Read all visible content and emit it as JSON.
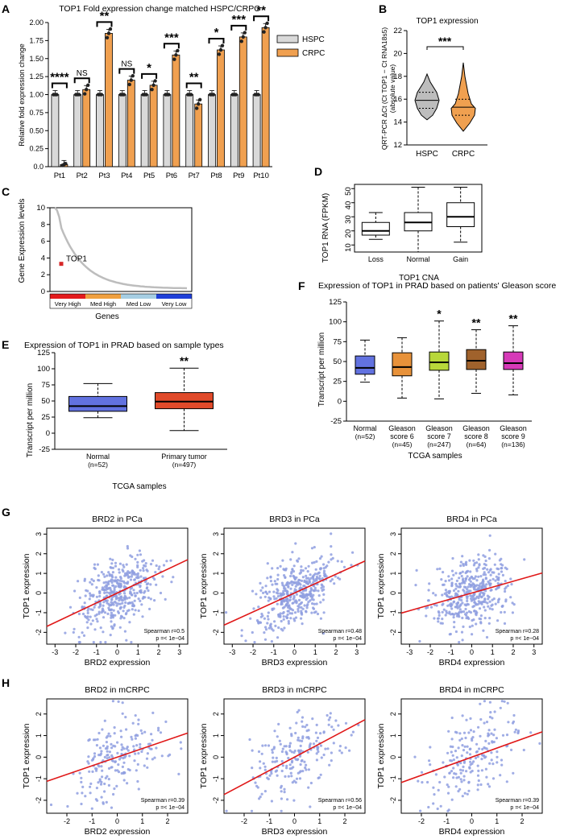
{
  "figure": {
    "panel_letters": [
      "A",
      "B",
      "C",
      "D",
      "E",
      "F",
      "G",
      "H"
    ]
  },
  "chart_data": [
    {
      "panel": "A",
      "type": "bar",
      "title": "TOP1 Fold expression change matched HSPC/CRPC",
      "ylabel": "Relative fold expression change",
      "ylim": [
        0,
        2.0
      ],
      "yticks": [
        "0.0",
        "0.25",
        "0.50",
        "0.75",
        "1.00",
        "1.25",
        "1.50",
        "1.75",
        "2.00"
      ],
      "categories": [
        "Pt1",
        "Pt2",
        "Pt3",
        "Pt4",
        "Pt5",
        "Pt6",
        "Pt7",
        "Pt8",
        "Pt9",
        "Pt10"
      ],
      "series": [
        {
          "name": "HSPC",
          "color": "#d9d9d9",
          "values": [
            1,
            1,
            1,
            1,
            1,
            1,
            1,
            1,
            1,
            1
          ]
        },
        {
          "name": "CRPC",
          "color": "#f0a050",
          "values": [
            0.03,
            1.07,
            1.85,
            1.2,
            1.13,
            1.55,
            0.87,
            1.62,
            1.8,
            1.93
          ]
        }
      ],
      "significance": [
        "****",
        "NS",
        "**",
        "NS",
        "*",
        "***",
        "**",
        "*",
        "***",
        "**"
      ]
    },
    {
      "panel": "B",
      "type": "violin",
      "title": "TOP1 expression",
      "ylabel": "QRT-PCR ΔCt (Ct TOP1 − Ct RNA18s5)",
      "ylabel2": "(absolute value)",
      "ylim": [
        12,
        22
      ],
      "yticks": [
        "12",
        "14",
        "16",
        "18",
        "20",
        "22"
      ],
      "categories": [
        "HSPC",
        "CRPC"
      ],
      "colors": [
        "#bdbdbd",
        "#f0a050"
      ],
      "medians": [
        15.9,
        15.3
      ],
      "significance": "***"
    },
    {
      "panel": "C",
      "type": "line",
      "ylabel": "Gene Expression levels",
      "xlabel": "Genes",
      "ylim": [
        0,
        10
      ],
      "yticks": [
        "0",
        "2",
        "4",
        "6",
        "8",
        "10"
      ],
      "highlight": {
        "label": "TOP1",
        "value": 3.3
      },
      "bands": [
        {
          "label": "Very High",
          "color": "#e31a1c"
        },
        {
          "label": "Med High",
          "color": "#f0a040"
        },
        {
          "label": "Med Low",
          "color": "#a6cee3"
        },
        {
          "label": "Very Low",
          "color": "#1f3fd8"
        }
      ]
    },
    {
      "panel": "D",
      "type": "box",
      "ylabel": "TOP1 RNA (FPKM)",
      "xlabel": "TOP1 CNA",
      "ylim": [
        5,
        53
      ],
      "yticks": [
        "10",
        "20",
        "30",
        "40",
        "50"
      ],
      "categories": [
        "Loss",
        "Normal",
        "Gain"
      ],
      "boxes": [
        {
          "min": 14,
          "q1": 17,
          "median": 20,
          "q3": 26,
          "max": 33
        },
        {
          "min": 5,
          "q1": 20,
          "median": 26,
          "q3": 33,
          "max": 51
        },
        {
          "min": 12,
          "q1": 23,
          "median": 30,
          "q3": 40,
          "max": 51
        }
      ]
    },
    {
      "panel": "E",
      "type": "box",
      "title": "Expression of TOP1 in PRAD based on sample types",
      "ylabel": "Transcript per million",
      "xlabel": "TCGA samples",
      "ylim": [
        -25,
        125
      ],
      "yticks": [
        "-25",
        "0",
        "25",
        "50",
        "75",
        "100",
        "125"
      ],
      "categories": [
        "Normal",
        "Primary tumor"
      ],
      "sublabels": [
        "(n=52)",
        "(n=497)"
      ],
      "colors": [
        "#6272e0",
        "#e04a2a"
      ],
      "boxes": [
        {
          "min": 24,
          "q1": 34,
          "median": 42,
          "q3": 57,
          "max": 77
        },
        {
          "min": 4,
          "q1": 38,
          "median": 49,
          "q3": 63,
          "max": 101
        }
      ],
      "significance": [
        "",
        "**"
      ]
    },
    {
      "panel": "F",
      "type": "box",
      "title": "Expression of TOP1 in PRAD based on patients' Gleason score",
      "ylabel": "Transcript per million",
      "xlabel": "TCGA samples",
      "ylim": [
        -25,
        125
      ],
      "yticks": [
        "-25",
        "0",
        "25",
        "50",
        "75",
        "100",
        "125"
      ],
      "categories": [
        "Normal",
        "Gleason\nscore 6",
        "Gleason\nscore 7",
        "Gleason\nscore 8",
        "Gleason\nscore 9"
      ],
      "sublabels": [
        "(n=52)",
        "(n=45)",
        "(n=247)",
        "(n=64)",
        "(n=136)"
      ],
      "colors": [
        "#6272e0",
        "#e8923a",
        "#b8d83a",
        "#a0622c",
        "#d63ab8"
      ],
      "boxes": [
        {
          "min": 24,
          "q1": 34,
          "median": 42,
          "q3": 57,
          "max": 77
        },
        {
          "min": 4,
          "q1": 32,
          "median": 43,
          "q3": 61,
          "max": 80
        },
        {
          "min": 3,
          "q1": 39,
          "median": 49,
          "q3": 62,
          "max": 101
        },
        {
          "min": 10,
          "q1": 40,
          "median": 51,
          "q3": 65,
          "max": 90
        },
        {
          "min": 8,
          "q1": 40,
          "median": 48,
          "q3": 62,
          "max": 95
        }
      ],
      "significance": [
        "",
        "",
        "*",
        "**",
        "**"
      ]
    },
    {
      "panel": "G",
      "type": "scatter",
      "plots": [
        {
          "title": "BRD2 in PCa",
          "xlabel": "BRD2 expression",
          "ylabel": "TOP1 expression",
          "stat1": "Spearman r=0.5",
          "stat2": "p =< 1e−04",
          "xticks": [
            "-3",
            "-2",
            "-1",
            "0",
            "1",
            "2",
            "3"
          ],
          "yticks": [
            "-2",
            "-1",
            "0",
            "1",
            "2",
            "3"
          ],
          "xlim": [
            -3.4,
            3.4
          ],
          "ylim": [
            -2.6,
            3.3
          ],
          "fit": {
            "slope": 0.5,
            "intercept": 0.0
          },
          "n": 430
        },
        {
          "title": "BRD3 in PCa",
          "xlabel": "BRD3 expression",
          "ylabel": "TOP1 expression",
          "stat1": "Spearman r=0.48",
          "stat2": "p =< 1e−04",
          "xticks": [
            "-3",
            "-2",
            "-1",
            "0",
            "1",
            "2",
            "3"
          ],
          "yticks": [
            "-2",
            "-1",
            "0",
            "1",
            "2",
            "3"
          ],
          "xlim": [
            -3.4,
            3.4
          ],
          "ylim": [
            -2.6,
            3.3
          ],
          "fit": {
            "slope": 0.48,
            "intercept": 0.0
          },
          "n": 430
        },
        {
          "title": "BRD4 in PCa",
          "xlabel": "BRD4 expression",
          "ylabel": "TOP1 expression",
          "stat1": "Spearman r=0.28",
          "stat2": "p =< 1e−04",
          "xticks": [
            "-3",
            "-2",
            "-1",
            "0",
            "1",
            "2",
            "3"
          ],
          "yticks": [
            "-2",
            "-1",
            "0",
            "1",
            "2",
            "3"
          ],
          "xlim": [
            -3.4,
            3.4
          ],
          "ylim": [
            -2.6,
            3.3
          ],
          "fit": {
            "slope": 0.3,
            "intercept": 0.0
          },
          "n": 430
        }
      ]
    },
    {
      "panel": "H",
      "type": "scatter",
      "plots": [
        {
          "title": "BRD2 in mCRPC",
          "xlabel": "BRD2 expression",
          "ylabel": "TOP1 expression",
          "stat1": "Spearman r=0.39",
          "stat2": "p =< 1e−04",
          "xticks": [
            "-2",
            "-1",
            "0",
            "1",
            "2"
          ],
          "yticks": [
            "-2",
            "-1",
            "0",
            "1",
            "2"
          ],
          "xlim": [
            -2.8,
            2.8
          ],
          "ylim": [
            -2.6,
            2.7
          ],
          "fit": {
            "slope": 0.4,
            "intercept": 0.0
          },
          "n": 200
        },
        {
          "title": "BRD3 in mCRPC",
          "xlabel": "BRD3 expression",
          "ylabel": "TOP1 expression",
          "stat1": "Spearman r=0.56",
          "stat2": "p =< 1e−04",
          "xticks": [
            "-2",
            "-1",
            "0",
            "1",
            "2"
          ],
          "yticks": [
            "-2",
            "-1",
            "0",
            "1",
            "2"
          ],
          "xlim": [
            -2.8,
            2.8
          ],
          "ylim": [
            -2.6,
            2.7
          ],
          "fit": {
            "slope": 0.62,
            "intercept": 0.0
          },
          "n": 200
        },
        {
          "title": "BRD4 in mCRPC",
          "xlabel": "BRD4 expression",
          "ylabel": "TOP1 expression",
          "stat1": "Spearman r=0.39",
          "stat2": "p =< 1e−04",
          "xticks": [
            "-2",
            "-1",
            "0",
            "1",
            "2"
          ],
          "yticks": [
            "-2",
            "-1",
            "0",
            "1",
            "2"
          ],
          "xlim": [
            -2.8,
            2.8
          ],
          "ylim": [
            -2.6,
            2.7
          ],
          "fit": {
            "slope": 0.42,
            "intercept": 0.0
          },
          "n": 200
        }
      ]
    }
  ]
}
